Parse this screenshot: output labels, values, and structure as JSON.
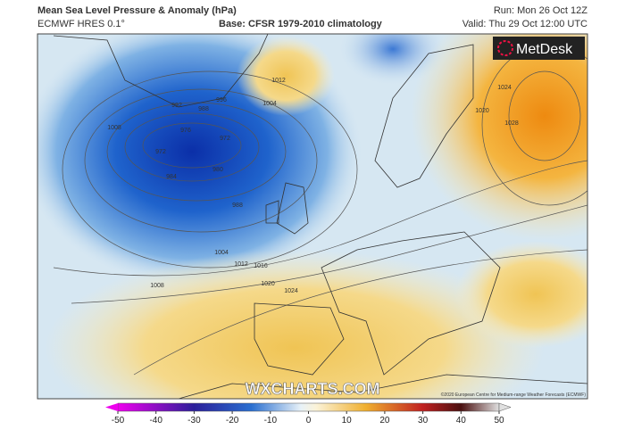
{
  "header": {
    "title": "Mean Sea Level Pressure & Anomaly (hPa)",
    "model": "ECMWF HRES 0.1°",
    "base": "Base: CFSR 1979-2010 climatology",
    "run": "Run: Mon 26 Oct 12Z",
    "valid": "Valid: Thu 29 Oct 12:00 UTC"
  },
  "logo": "MetDesk",
  "watermark": "WXCHARTS.COM",
  "credit": "©2020 European Centre for Medium-range Weather Forecasts (ECMWF)",
  "contours": {
    "labels": [
      976,
      972,
      972,
      980,
      984,
      988,
      988,
      992,
      996,
      1004,
      1008,
      1012,
      1016,
      1020,
      1024,
      1028,
      1024,
      1020,
      1012,
      1004,
      1008
    ]
  },
  "colorbar": {
    "ticks": [
      -50,
      -40,
      -30,
      -20,
      -10,
      0,
      10,
      20,
      30,
      40,
      50
    ]
  }
}
